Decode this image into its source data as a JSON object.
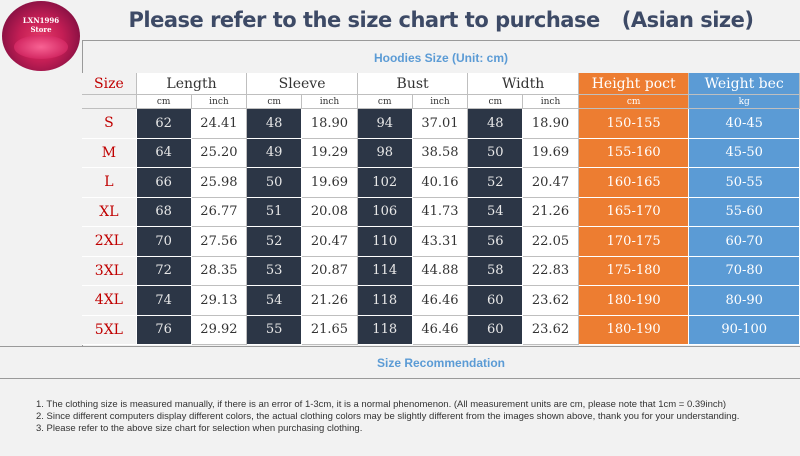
{
  "logo": {
    "line1": "LXN1996",
    "line2": "Store"
  },
  "title": {
    "main": "Please refer to the size chart to purchase",
    "suffix": "(Asian size)"
  },
  "subtitle": "Hoodies Size (Unit: cm)",
  "headers": [
    "Size",
    "Length",
    "Sleeve",
    "Bust",
    "Width",
    "Height poct",
    "Weight bec"
  ],
  "units": [
    "cm",
    "inch",
    "cm",
    "inch",
    "cm",
    "inch",
    "cm",
    "inch",
    "cm",
    "kg"
  ],
  "rows": [
    {
      "size": "S",
      "length_cm": "62",
      "length_in": "24.41",
      "sleeve_cm": "48",
      "sleeve_in": "18.90",
      "bust_cm": "94",
      "bust_in": "37.01",
      "width_cm": "48",
      "width_in": "18.90",
      "height": "150-155",
      "weight": "40-45"
    },
    {
      "size": "M",
      "length_cm": "64",
      "length_in": "25.20",
      "sleeve_cm": "49",
      "sleeve_in": "19.29",
      "bust_cm": "98",
      "bust_in": "38.58",
      "width_cm": "50",
      "width_in": "19.69",
      "height": "155-160",
      "weight": "45-50"
    },
    {
      "size": "L",
      "length_cm": "66",
      "length_in": "25.98",
      "sleeve_cm": "50",
      "sleeve_in": "19.69",
      "bust_cm": "102",
      "bust_in": "40.16",
      "width_cm": "52",
      "width_in": "20.47",
      "height": "160-165",
      "weight": "50-55"
    },
    {
      "size": "XL",
      "length_cm": "68",
      "length_in": "26.77",
      "sleeve_cm": "51",
      "sleeve_in": "20.08",
      "bust_cm": "106",
      "bust_in": "41.73",
      "width_cm": "54",
      "width_in": "21.26",
      "height": "165-170",
      "weight": "55-60"
    },
    {
      "size": "2XL",
      "length_cm": "70",
      "length_in": "27.56",
      "sleeve_cm": "52",
      "sleeve_in": "20.47",
      "bust_cm": "110",
      "bust_in": "43.31",
      "width_cm": "56",
      "width_in": "22.05",
      "height": "170-175",
      "weight": "60-70"
    },
    {
      "size": "3XL",
      "length_cm": "72",
      "length_in": "28.35",
      "sleeve_cm": "53",
      "sleeve_in": "20.87",
      "bust_cm": "114",
      "bust_in": "44.88",
      "width_cm": "58",
      "width_in": "22.83",
      "height": "175-180",
      "weight": "70-80"
    },
    {
      "size": "4XL",
      "length_cm": "74",
      "length_in": "29.13",
      "sleeve_cm": "54",
      "sleeve_in": "21.26",
      "bust_cm": "118",
      "bust_in": "46.46",
      "width_cm": "60",
      "width_in": "23.62",
      "height": "180-190",
      "weight": "80-90"
    },
    {
      "size": "5XL",
      "length_cm": "76",
      "length_in": "29.92",
      "sleeve_cm": "55",
      "sleeve_in": "21.65",
      "bust_cm": "118",
      "bust_in": "46.46",
      "width_cm": "60",
      "width_in": "23.62",
      "height": "180-190",
      "weight": "90-100"
    }
  ],
  "recommendation_title": "Size Recommendation",
  "notes": [
    "1. The clothing size is measured manually, if there is an error of 1-3cm, it is a normal phenomenon. (All measurement units are cm, please note that 1cm = 0.39inch)",
    "2. Since different computers display different colors, the actual clothing colors may be slightly different from the images shown above, thank you for your understanding.",
    "3. Please refer to the above size chart for selection when purchasing clothing."
  ],
  "colors": {
    "title": "#3d4a66",
    "accent_blue": "#5b9bd5",
    "accent_orange": "#ed7d31",
    "dark_cell": "#2c3646",
    "size_red": "#c00000"
  }
}
